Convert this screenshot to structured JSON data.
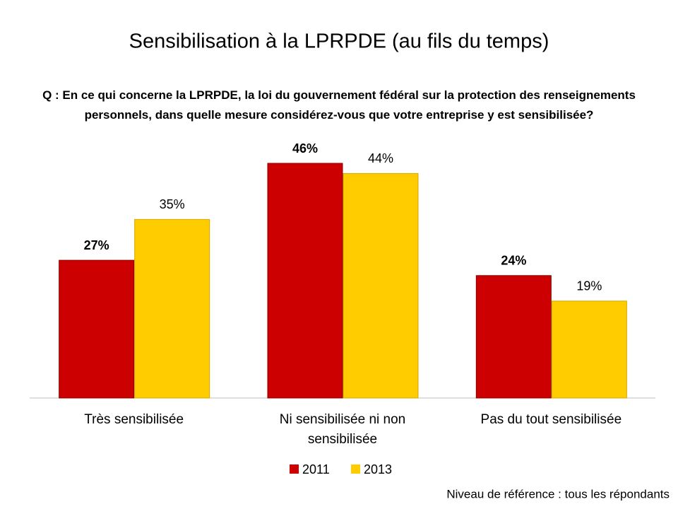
{
  "chart_data": {
    "type": "bar",
    "title": "Sensibilisation à la LPRPDE (au fils du temps)",
    "subtitle": "Q : En ce qui concerne la LPRPDE, la loi du gouvernement fédéral sur la protection des renseignements personnels, dans quelle mesure considérez-vous que votre entreprise y est sensibilisée?",
    "categories": [
      "Très sensibilisée",
      "Ni sensibilisée ni non sensibilisée",
      "Pas du tout sensibilisée"
    ],
    "series": [
      {
        "name": "2011",
        "color": "#cc0000",
        "values": [
          27,
          46,
          24
        ],
        "value_labels": [
          "27%",
          "46%",
          "24%"
        ]
      },
      {
        "name": "2013",
        "color": "#ffcc00",
        "values": [
          35,
          44,
          19
        ],
        "value_labels": [
          "35%",
          "44%",
          "19%"
        ]
      }
    ],
    "note": "Niveau de référence : tous les répondants"
  }
}
